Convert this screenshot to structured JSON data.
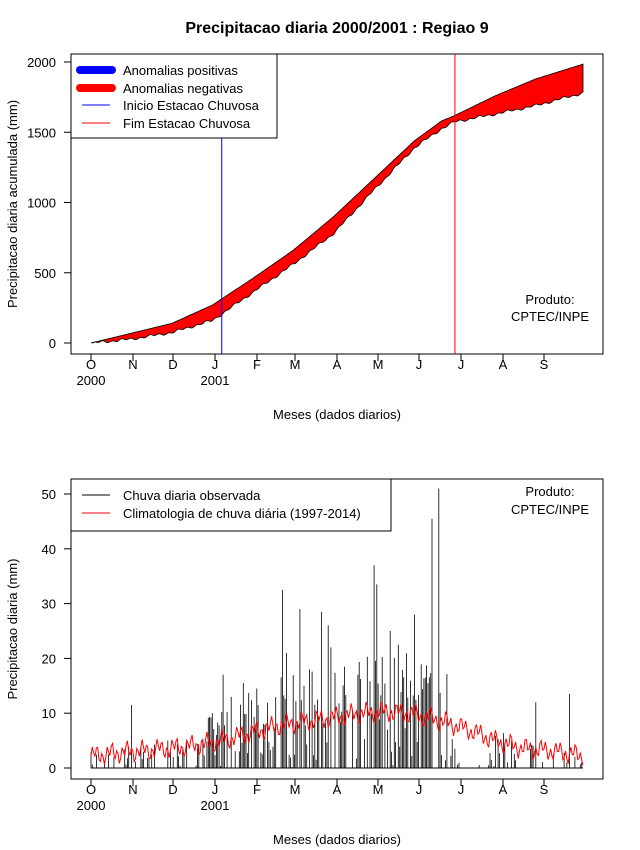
{
  "title": "Precipitacao diaria 2000/2001 : Regiao 9",
  "chart_data": [
    {
      "type": "area",
      "title": "Precipitacao diaria 2000/2001 : Regiao 9",
      "xlabel": "Meses (dados diarios)",
      "ylabel": "Precipitacao diaria acumulada (mm)",
      "ylim": [
        0,
        2000
      ],
      "yticks": [
        0,
        500,
        1000,
        1500,
        2000
      ],
      "months": [
        "O",
        "N",
        "D",
        "J",
        "F",
        "M",
        "A",
        "M",
        "J",
        "J",
        "A",
        "S"
      ],
      "years": [
        "2000",
        "2001"
      ],
      "legend": [
        "Anomalias positivas",
        "Anomalias negativas",
        "Inicio Estacao Chuvosa",
        "Fim Estacao Chuvosa"
      ],
      "legend_colors": [
        "#0000ff",
        "#ff0000",
        "#0000ff",
        "#ff0000"
      ],
      "onset_day": 97,
      "end_day": 270,
      "observed_cumulative": {
        "day": [
          0,
          30,
          60,
          90,
          120,
          150,
          180,
          210,
          240,
          260,
          270,
          300,
          330,
          365
        ],
        "value": [
          0,
          28,
          75,
          160,
          360,
          560,
          780,
          1090,
          1390,
          1525,
          1575,
          1630,
          1690,
          1780
        ]
      },
      "climatology_cumulative": {
        "day": [
          0,
          30,
          60,
          90,
          120,
          150,
          180,
          210,
          240,
          260,
          270,
          300,
          330,
          365
        ],
        "value": [
          0,
          70,
          140,
          270,
          460,
          660,
          900,
          1170,
          1440,
          1580,
          1620,
          1760,
          1880,
          1985
        ]
      },
      "annotation": [
        "Produto:",
        "CPTEC/INPE"
      ]
    },
    {
      "type": "line",
      "xlabel": "Meses (dados diarios)",
      "ylabel": "Precipitacao diaria (mm)",
      "ylim": [
        0,
        50
      ],
      "yticks": [
        0,
        10,
        20,
        30,
        40,
        50
      ],
      "months": [
        "O",
        "N",
        "D",
        "J",
        "F",
        "M",
        "A",
        "M",
        "J",
        "J",
        "A",
        "S"
      ],
      "years": [
        "2000",
        "2001"
      ],
      "legend": [
        "Chuva diaria observada",
        "Climatologia de chuva diária (1997-2014)"
      ],
      "legend_colors": [
        "#000000",
        "#ff0000"
      ],
      "observed_peaks": {
        "day": [
          30,
          57,
          98,
          104,
          113,
          123,
          142,
          145,
          155,
          158,
          162,
          171,
          176,
          178,
          188,
          198,
          210,
          212,
          222,
          228,
          240,
          250,
          253,
          258,
          330,
          355
        ],
        "value": [
          11.5,
          5,
          17,
          13,
          15.5,
          14.5,
          32.5,
          21,
          29,
          15,
          18,
          28.5,
          26,
          22,
          18.5,
          17,
          37,
          33.5,
          25,
          22.5,
          28,
          15.5,
          45.5,
          51,
          12,
          13.5
        ]
      },
      "climatology": {
        "day": [
          0,
          20,
          40,
          60,
          80,
          100,
          120,
          140,
          160,
          180,
          200,
          220,
          240,
          260,
          280,
          300,
          320,
          340,
          365
        ],
        "value": [
          2.2,
          2.8,
          3.2,
          3.6,
          4.2,
          5.2,
          6.5,
          7.8,
          8.5,
          9.2,
          10,
          10.3,
          9.8,
          8.6,
          7,
          5,
          3.6,
          3.2,
          2.2
        ]
      },
      "annotation": [
        "Produto:",
        "CPTEC/INPE"
      ]
    }
  ]
}
